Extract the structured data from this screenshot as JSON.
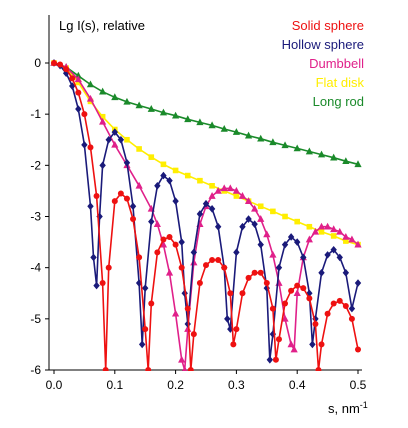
{
  "chart_data": {
    "type": "line",
    "title": "",
    "ylabel": "Lg I(s), relative",
    "xlabel": "s, nm",
    "xlabel_sup": "-1",
    "xlim": [
      0.0,
      0.5
    ],
    "ylim": [
      -6,
      0
    ],
    "xticks": [
      0.0,
      0.1,
      0.2,
      0.3,
      0.4,
      0.5
    ],
    "xtick_labels": [
      "0.0",
      "0.1",
      "0.2",
      "0.3",
      "0.4",
      "0.5"
    ],
    "yticks": [
      0,
      -1,
      -2,
      -3,
      -4,
      -5,
      -6
    ],
    "ytick_labels": [
      "0",
      "-1",
      "-2",
      "-3",
      "-4",
      "-5",
      "-6"
    ],
    "grid": false,
    "legend_position": "top-right",
    "series": [
      {
        "name": "Solid sphere",
        "color": "#ee1111",
        "marker": "circle",
        "x": [
          0.0,
          0.01,
          0.02,
          0.03,
          0.04,
          0.05,
          0.06,
          0.07,
          0.08,
          0.085,
          0.09,
          0.1,
          0.11,
          0.12,
          0.13,
          0.14,
          0.15,
          0.155,
          0.16,
          0.17,
          0.18,
          0.19,
          0.2,
          0.21,
          0.22,
          0.225,
          0.23,
          0.24,
          0.25,
          0.26,
          0.27,
          0.28,
          0.29,
          0.295,
          0.3,
          0.31,
          0.32,
          0.33,
          0.34,
          0.35,
          0.36,
          0.365,
          0.37,
          0.38,
          0.39,
          0.4,
          0.41,
          0.42,
          0.43,
          0.435,
          0.44,
          0.45,
          0.46,
          0.47,
          0.48,
          0.49,
          0.5
        ],
        "y": [
          0,
          -0.03,
          -0.12,
          -0.3,
          -0.58,
          -1.0,
          -1.65,
          -2.6,
          -4.3,
          -6.0,
          -4.0,
          -2.7,
          -2.55,
          -2.65,
          -3.05,
          -3.8,
          -5.2,
          -6.0,
          -4.7,
          -3.7,
          -3.45,
          -3.4,
          -3.55,
          -4.0,
          -4.8,
          -6.0,
          -5.3,
          -4.3,
          -3.95,
          -3.85,
          -3.85,
          -4.0,
          -4.5,
          -5.5,
          -5.2,
          -4.5,
          -4.2,
          -4.1,
          -4.1,
          -4.3,
          -4.8,
          -5.8,
          -5.4,
          -4.7,
          -4.45,
          -4.35,
          -4.4,
          -4.6,
          -5.1,
          -6.0,
          -5.5,
          -4.9,
          -4.7,
          -4.65,
          -4.75,
          -5.0,
          -5.6
        ]
      },
      {
        "name": "Hollow sphere",
        "color": "#1a1a7a",
        "marker": "diamond",
        "x": [
          0.0,
          0.01,
          0.02,
          0.03,
          0.04,
          0.05,
          0.06,
          0.065,
          0.07,
          0.075,
          0.08,
          0.09,
          0.1,
          0.11,
          0.12,
          0.13,
          0.14,
          0.145,
          0.15,
          0.16,
          0.17,
          0.18,
          0.19,
          0.2,
          0.21,
          0.215,
          0.22,
          0.23,
          0.24,
          0.25,
          0.26,
          0.27,
          0.28,
          0.285,
          0.29,
          0.3,
          0.31,
          0.32,
          0.33,
          0.34,
          0.35,
          0.355,
          0.36,
          0.37,
          0.38,
          0.39,
          0.4,
          0.41,
          0.42,
          0.425,
          0.43,
          0.44,
          0.45,
          0.46,
          0.47,
          0.48,
          0.49,
          0.5
        ],
        "y": [
          0,
          -0.05,
          -0.2,
          -0.45,
          -0.9,
          -1.6,
          -2.8,
          -3.8,
          -4.35,
          -3.0,
          -2.0,
          -1.5,
          -1.35,
          -1.5,
          -1.95,
          -2.8,
          -4.3,
          -5.5,
          -4.4,
          -3.1,
          -2.4,
          -2.2,
          -2.3,
          -2.7,
          -3.5,
          -4.5,
          -5.1,
          -3.7,
          -2.95,
          -2.75,
          -2.85,
          -3.2,
          -4.0,
          -5.0,
          -5.2,
          -3.7,
          -3.2,
          -3.05,
          -3.15,
          -3.55,
          -4.4,
          -5.8,
          -5.3,
          -4.0,
          -3.55,
          -3.4,
          -3.5,
          -3.8,
          -4.5,
          -5.5,
          -5.0,
          -4.1,
          -3.75,
          -3.65,
          -3.8,
          -4.1,
          -4.8,
          -4.3
        ]
      },
      {
        "name": "Dumbbell",
        "color": "#e0208a",
        "marker": "triangle",
        "x": [
          0.0,
          0.02,
          0.04,
          0.06,
          0.08,
          0.1,
          0.12,
          0.14,
          0.16,
          0.17,
          0.18,
          0.19,
          0.2,
          0.21,
          0.215,
          0.22,
          0.23,
          0.24,
          0.25,
          0.26,
          0.27,
          0.28,
          0.29,
          0.3,
          0.31,
          0.32,
          0.33,
          0.34,
          0.35,
          0.36,
          0.37,
          0.38,
          0.39,
          0.395,
          0.4,
          0.41,
          0.42,
          0.43,
          0.44,
          0.45,
          0.46,
          0.47,
          0.48,
          0.49,
          0.5
        ],
        "y": [
          0,
          -0.08,
          -0.32,
          -0.7,
          -1.15,
          -1.6,
          -2.0,
          -2.4,
          -2.85,
          -3.15,
          -3.55,
          -4.1,
          -4.9,
          -5.8,
          -6.0,
          -5.2,
          -3.9,
          -3.15,
          -2.8,
          -2.6,
          -2.5,
          -2.45,
          -2.45,
          -2.5,
          -2.6,
          -2.7,
          -2.85,
          -3.05,
          -3.35,
          -3.75,
          -4.3,
          -5.0,
          -5.5,
          -5.6,
          -4.5,
          -3.8,
          -3.45,
          -3.3,
          -3.2,
          -3.2,
          -3.25,
          -3.3,
          -3.4,
          -3.45,
          -3.55
        ]
      },
      {
        "name": "Flat disk",
        "color": "#ffee00",
        "marker": "square",
        "x": [
          0.0,
          0.02,
          0.04,
          0.06,
          0.08,
          0.1,
          0.12,
          0.14,
          0.16,
          0.18,
          0.2,
          0.22,
          0.24,
          0.26,
          0.28,
          0.3,
          0.32,
          0.34,
          0.36,
          0.38,
          0.4,
          0.42,
          0.44,
          0.46,
          0.48,
          0.5
        ],
        "y": [
          0,
          -0.1,
          -0.38,
          -0.75,
          -1.05,
          -1.3,
          -1.5,
          -1.68,
          -1.84,
          -1.98,
          -2.1,
          -2.2,
          -2.3,
          -2.4,
          -2.5,
          -2.6,
          -2.7,
          -2.8,
          -2.9,
          -3.0,
          -3.1,
          -3.2,
          -3.3,
          -3.38,
          -3.48,
          -3.55
        ]
      },
      {
        "name": "Long rod",
        "color": "#1a8a2a",
        "marker": "triangle",
        "x": [
          0.0,
          0.02,
          0.04,
          0.06,
          0.08,
          0.1,
          0.12,
          0.14,
          0.16,
          0.18,
          0.2,
          0.22,
          0.24,
          0.26,
          0.28,
          0.3,
          0.32,
          0.34,
          0.36,
          0.38,
          0.4,
          0.42,
          0.44,
          0.46,
          0.48,
          0.5
        ],
        "y": [
          0,
          -0.08,
          -0.25,
          -0.42,
          -0.56,
          -0.67,
          -0.76,
          -0.83,
          -0.9,
          -0.97,
          -1.03,
          -1.1,
          -1.16,
          -1.22,
          -1.29,
          -1.35,
          -1.42,
          -1.48,
          -1.55,
          -1.61,
          -1.67,
          -1.73,
          -1.79,
          -1.85,
          -1.92,
          -1.98
        ]
      }
    ]
  }
}
